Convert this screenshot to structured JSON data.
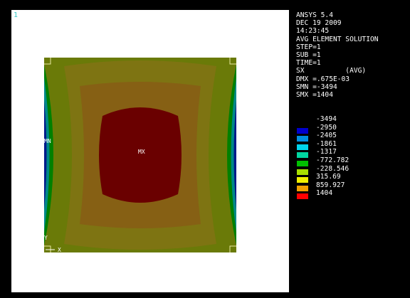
{
  "window_number": "1",
  "header": {
    "program": "ANSYS 5.4",
    "date": "DEC 19 2009",
    "time": "14:23:45",
    "plot_type": "AVG ELEMENT SOLUTION",
    "step": "STEP=1",
    "sub": "SUB =1",
    "time_value": "TIME=1",
    "component": "SX          (AVG)",
    "dmx": "DMX =.675E-03",
    "smn": "SMN =-3494",
    "smx": "SMX =1404"
  },
  "legend": [
    {
      "label": "-3494",
      "color": null
    },
    {
      "label": "-2950",
      "color": "#0000cc"
    },
    {
      "label": "-2405",
      "color": "#0090e0"
    },
    {
      "label": "-1861",
      "color": "#00d4ec"
    },
    {
      "label": "-1317",
      "color": "#00d6a0"
    },
    {
      "label": "-772.782",
      "color": "#00c000"
    },
    {
      "label": "-228.546",
      "color": "#a8e000"
    },
    {
      "label": "315.69",
      "color": "#f0f000"
    },
    {
      "label": "859.927",
      "color": "#f0a000"
    },
    {
      "label": "1404",
      "color": "#ff0000"
    }
  ],
  "plot_labels": {
    "min": "MN",
    "max": "MX",
    "x_axis": "X",
    "y_axis": "Y"
  },
  "colors": {
    "outer_band": "#6a7a08",
    "middle_band": "#7e7412",
    "inner_band": "#866014",
    "max_region": "#6a0000",
    "edge_green": "#008000",
    "edge_cyan": "#008888",
    "edge_blue": "#001a8a",
    "corner_marker": "#e8e8a0"
  }
}
